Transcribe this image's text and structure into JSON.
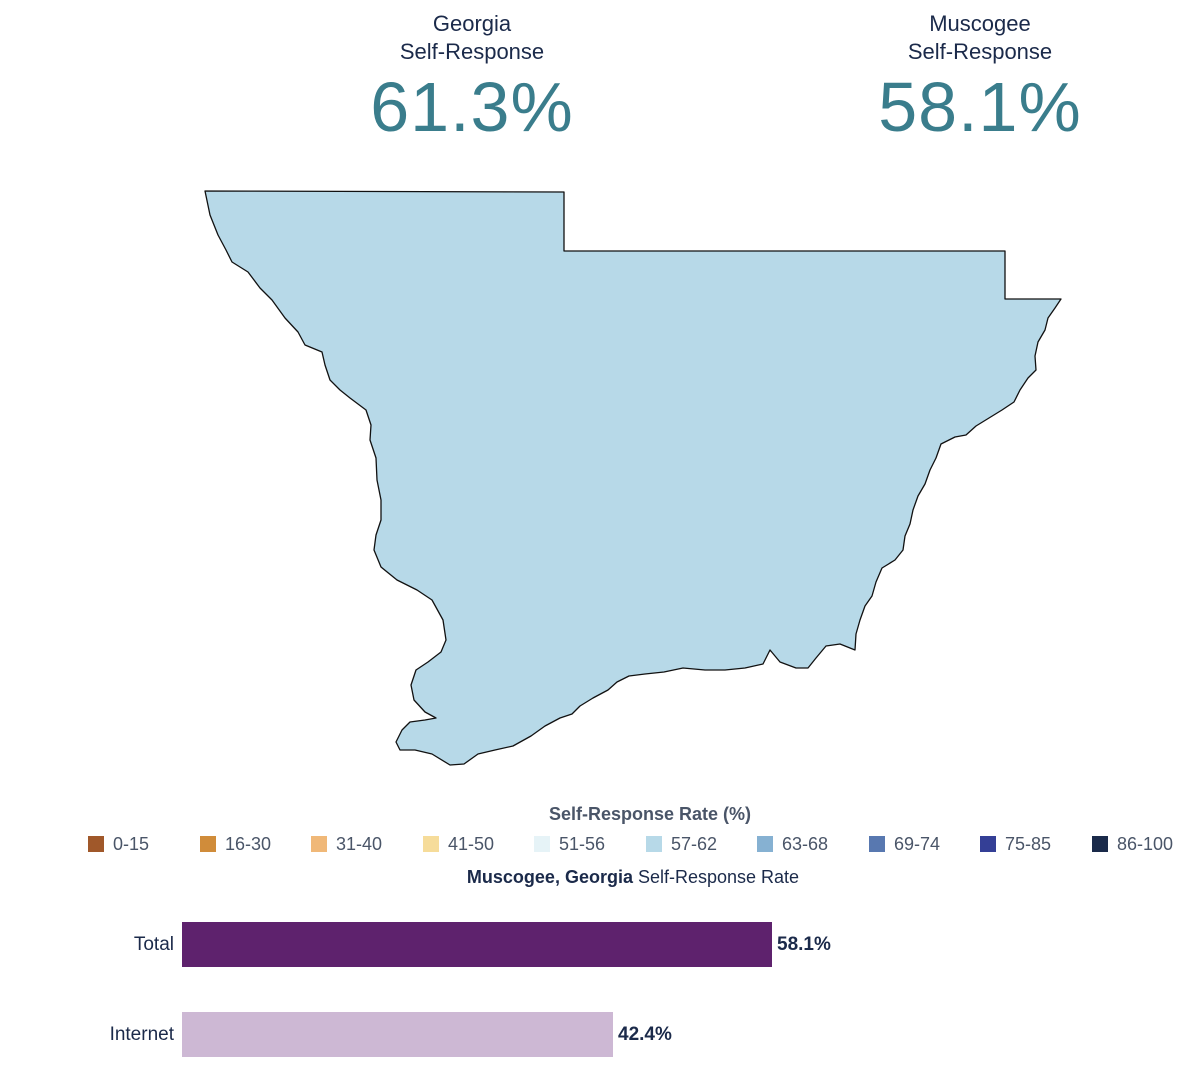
{
  "header": {
    "georgia": {
      "label_line1": "Georgia",
      "label_line2": "Self-Response",
      "value": "61.3%"
    },
    "county": {
      "label_line1": "Muscogee",
      "label_line2": "Self-Response",
      "value": "58.1%"
    }
  },
  "map": {
    "region": "Muscogee",
    "fill": "#b7d9e8",
    "stroke": "#111111",
    "legend_bin": "57-62"
  },
  "legend": {
    "title": "Self-Response Rate (%)",
    "items": [
      {
        "label": "0-15",
        "color": "#a0582a"
      },
      {
        "label": "16-30",
        "color": "#d08c3a"
      },
      {
        "label": "31-40",
        "color": "#f0b878"
      },
      {
        "label": "41-50",
        "color": "#f6dc9a"
      },
      {
        "label": "51-56",
        "color": "#e6f3f7"
      },
      {
        "label": "57-62",
        "color": "#b7d9e8"
      },
      {
        "label": "63-68",
        "color": "#86b1d2"
      },
      {
        "label": "69-74",
        "color": "#5878b0"
      },
      {
        "label": "75-85",
        "color": "#343f96"
      },
      {
        "label": "86-100",
        "color": "#1a2a4a"
      }
    ]
  },
  "bar_chart": {
    "title_bold": "Muscogee, Georgia",
    "title_rest": " Self-Response Rate",
    "xlim": [
      0,
      100
    ]
  },
  "chart_data": {
    "type": "bar",
    "orientation": "horizontal",
    "categories": [
      "Total",
      "Internet"
    ],
    "values": [
      58.1,
      42.4
    ],
    "value_labels": [
      "58.1%",
      "42.4%"
    ],
    "colors": [
      "#5e226d",
      "#cdb8d4"
    ],
    "title": "Muscogee, Georgia Self-Response Rate"
  }
}
